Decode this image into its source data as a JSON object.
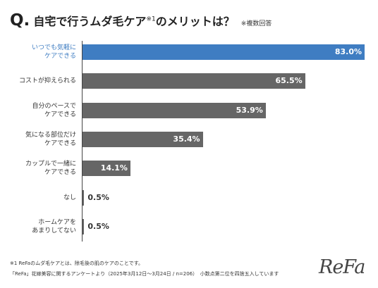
{
  "title": {
    "q_mark": "Q.",
    "text": "自宅で行うムダ毛ケア",
    "sup": "※1",
    "text_after": "のメリットは？",
    "note": "※複数回答"
  },
  "colors": {
    "highlight": "#3f7dc2",
    "bar": "#666666",
    "axis": "#444444"
  },
  "chart_data": {
    "type": "bar",
    "orientation": "horizontal",
    "categories": [
      "いつでも気軽に\nケアできる",
      "コストが抑えられる",
      "自分のペースで\nケアできる",
      "気になる部位だけ\nケアできる",
      "カップルで一緒に\nケアできる",
      "なし",
      "ホームケアを\nあまりしてない"
    ],
    "values": [
      83.0,
      65.5,
      53.9,
      35.4,
      14.1,
      0.5,
      0.5
    ],
    "value_labels": [
      "83.0%",
      "65.5%",
      "53.9%",
      "35.4%",
      "14.1%",
      "0.5%",
      "0.5%"
    ],
    "highlight_index": 0,
    "xlim": [
      0,
      83.0
    ],
    "grid": false,
    "legend": "none"
  },
  "footnotes": [
    "※1 ReFaのムダ毛ケアとは、除毛後の肌のケアのことです。",
    "「ReFa」花嫁美容に関するアンケートより（2025年3月12日〜3月24日 / n=206）　小数点第二位を四捨五入しています"
  ],
  "logo_text": "ReFa"
}
